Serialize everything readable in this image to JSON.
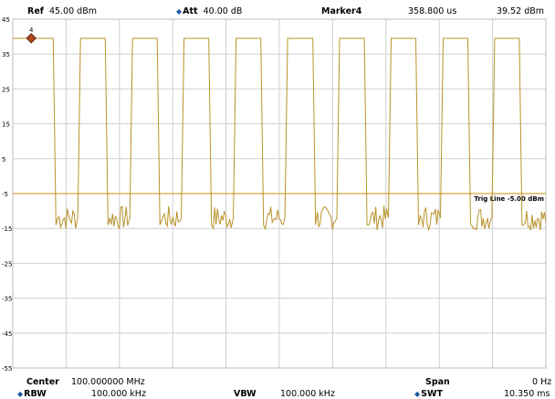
{
  "header": {
    "ref_label": "Ref",
    "ref_value": "45.00 dBm",
    "att_label": "Att",
    "att_value": "40.00 dB",
    "marker_label": "Marker4",
    "marker_time": "358.800 us",
    "marker_level": "39.52 dBm"
  },
  "footer": {
    "center_label": "Center",
    "center_value": "100.000000 MHz",
    "span_label": "Span",
    "span_value": "0 Hz",
    "rbw_label": "RBW",
    "rbw_value": "100.000 kHz",
    "vbw_label": "VBW",
    "vbw_value": "100.000 kHz",
    "swt_label": "SWT",
    "swt_value": "10.350 ms"
  },
  "chart_data": {
    "type": "line",
    "ylim": [
      -55,
      45
    ],
    "y_ticks": [
      45,
      35,
      25,
      15,
      5,
      -5,
      -15,
      -25,
      -35,
      -45,
      -55
    ],
    "x_range_ms": [
      0,
      10.35
    ],
    "grid": true,
    "trigger_line": {
      "label": "Trig Line",
      "value_label": "-5.00 dBm",
      "level": -5
    },
    "marker": {
      "number": "4",
      "x_ms": 0.3588,
      "y": 39.52
    },
    "pulse_high_level": 39.5,
    "pulse_low_level": -12,
    "pulses_ms": [
      [
        0.0,
        0.82
      ],
      [
        1.28,
        1.83
      ],
      [
        2.29,
        2.84
      ],
      [
        3.29,
        3.84
      ],
      [
        4.3,
        4.85
      ],
      [
        5.3,
        5.86
      ],
      [
        6.31,
        6.86
      ],
      [
        7.31,
        7.86
      ],
      [
        8.32,
        8.87
      ],
      [
        9.32,
        9.87
      ]
    ],
    "trace_color": "#b8922a",
    "trig_color": "#c8960c"
  }
}
